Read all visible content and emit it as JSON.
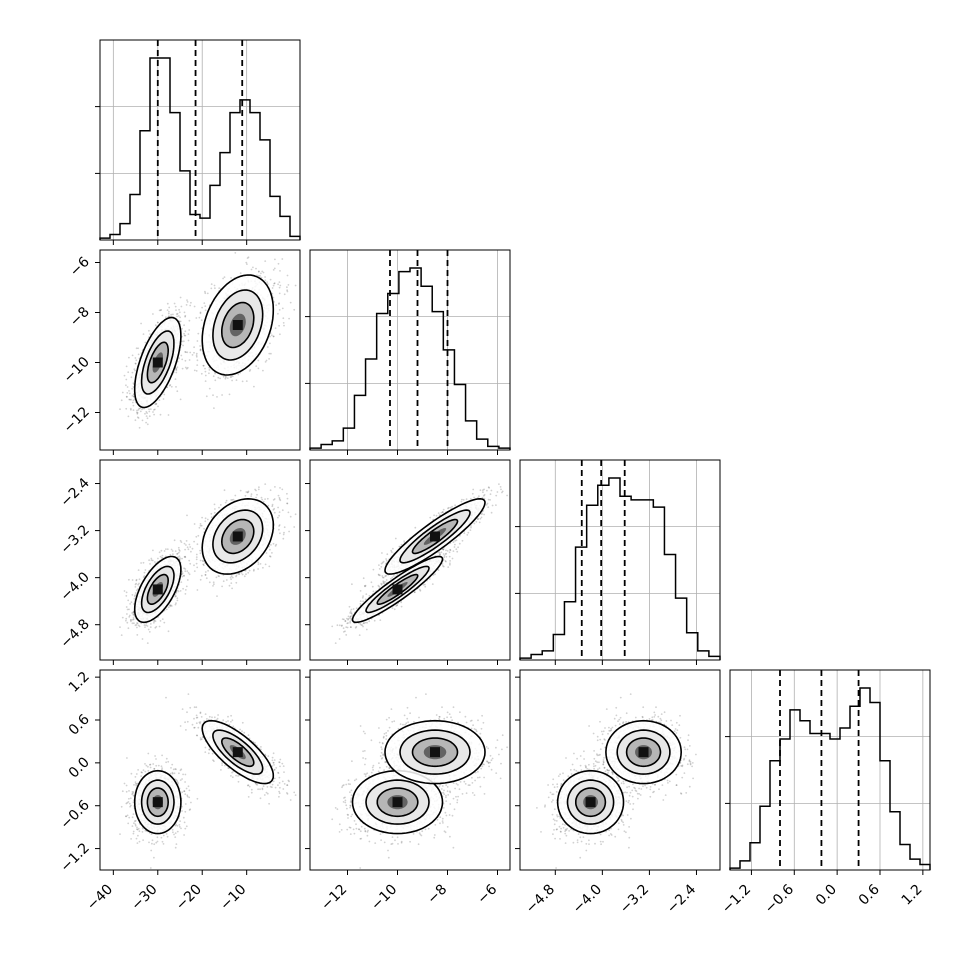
{
  "chart_data": {
    "type": "corner",
    "parameters": [
      {
        "ticks": [
          -40,
          -30,
          -20,
          -10
        ],
        "tick_labels": [
          "−40",
          "−30",
          "−20",
          "−10"
        ],
        "range": [
          -43,
          2
        ],
        "quantiles": [
          -30.0,
          -21.5,
          -11.0
        ],
        "hist": [
          0.01,
          0.03,
          0.09,
          0.25,
          0.6,
          1.0,
          1.0,
          0.7,
          0.38,
          0.14,
          0.12,
          0.3,
          0.48,
          0.7,
          0.77,
          0.7,
          0.55,
          0.24,
          0.13,
          0.02
        ]
      },
      {
        "ticks": [
          -12,
          -10,
          -8,
          -6
        ],
        "tick_labels": [
          "−12",
          "−10",
          "−8",
          "−6"
        ],
        "range": [
          -13.5,
          -5.5
        ],
        "quantiles": [
          -10.3,
          -9.2,
          -8.0
        ],
        "hist": [
          0.01,
          0.03,
          0.05,
          0.12,
          0.3,
          0.5,
          0.75,
          0.86,
          0.98,
          1.0,
          0.9,
          0.76,
          0.55,
          0.36,
          0.16,
          0.06,
          0.02,
          0.01
        ]
      },
      {
        "ticks": [
          -4.8,
          -4.0,
          -3.2,
          -2.4
        ],
        "tick_labels": [
          "−4.8",
          "−4.0",
          "−3.2",
          "−2.4"
        ],
        "range": [
          -5.4,
          -2.0
        ],
        "quantiles": [
          -4.35,
          -4.02,
          -3.62
        ],
        "hist": [
          0.01,
          0.03,
          0.05,
          0.14,
          0.32,
          0.62,
          0.85,
          0.96,
          1.0,
          0.9,
          0.88,
          0.88,
          0.84,
          0.58,
          0.34,
          0.15,
          0.05,
          0.02
        ]
      },
      {
        "ticks": [
          -1.2,
          -0.6,
          0.0,
          0.6,
          1.2
        ],
        "tick_labels": [
          "−1.2",
          "−0.6",
          "0.0",
          "0.6",
          "1.2"
        ],
        "range": [
          -1.5,
          1.3
        ],
        "quantiles": [
          -0.8,
          -0.22,
          0.3
        ],
        "hist": [
          0.01,
          0.05,
          0.15,
          0.35,
          0.6,
          0.72,
          0.88,
          0.82,
          0.75,
          0.75,
          0.72,
          0.78,
          0.9,
          1.0,
          0.92,
          0.6,
          0.32,
          0.14,
          0.06,
          0.03
        ]
      }
    ],
    "modes": {
      "weights": [
        0.52,
        0.48
      ],
      "means": [
        [
          -30,
          -10.0,
          -4.2,
          -0.55
        ],
        [
          -12,
          -8.5,
          -3.3,
          0.15
        ]
      ],
      "sds": [
        [
          2.6,
          0.9,
          0.28,
          0.22
        ],
        [
          4.0,
          1.0,
          0.32,
          0.22
        ]
      ],
      "corr": [
        [
          [
            1.0,
            0.6,
            0.6,
            0.0
          ],
          [
            0.6,
            1.0,
            0.92,
            0.0
          ],
          [
            0.6,
            0.92,
            1.0,
            0.0
          ],
          [
            0.0,
            0.0,
            0.0,
            1.0
          ]
        ],
        [
          [
            1.0,
            0.3,
            0.3,
            -0.75
          ],
          [
            0.3,
            1.0,
            0.9,
            0.0
          ],
          [
            0.3,
            0.9,
            1.0,
            0.0
          ],
          [
            -0.75,
            0.0,
            0.0,
            1.0
          ]
        ]
      ]
    },
    "grid": true,
    "dashed_quantile_lines": true
  }
}
